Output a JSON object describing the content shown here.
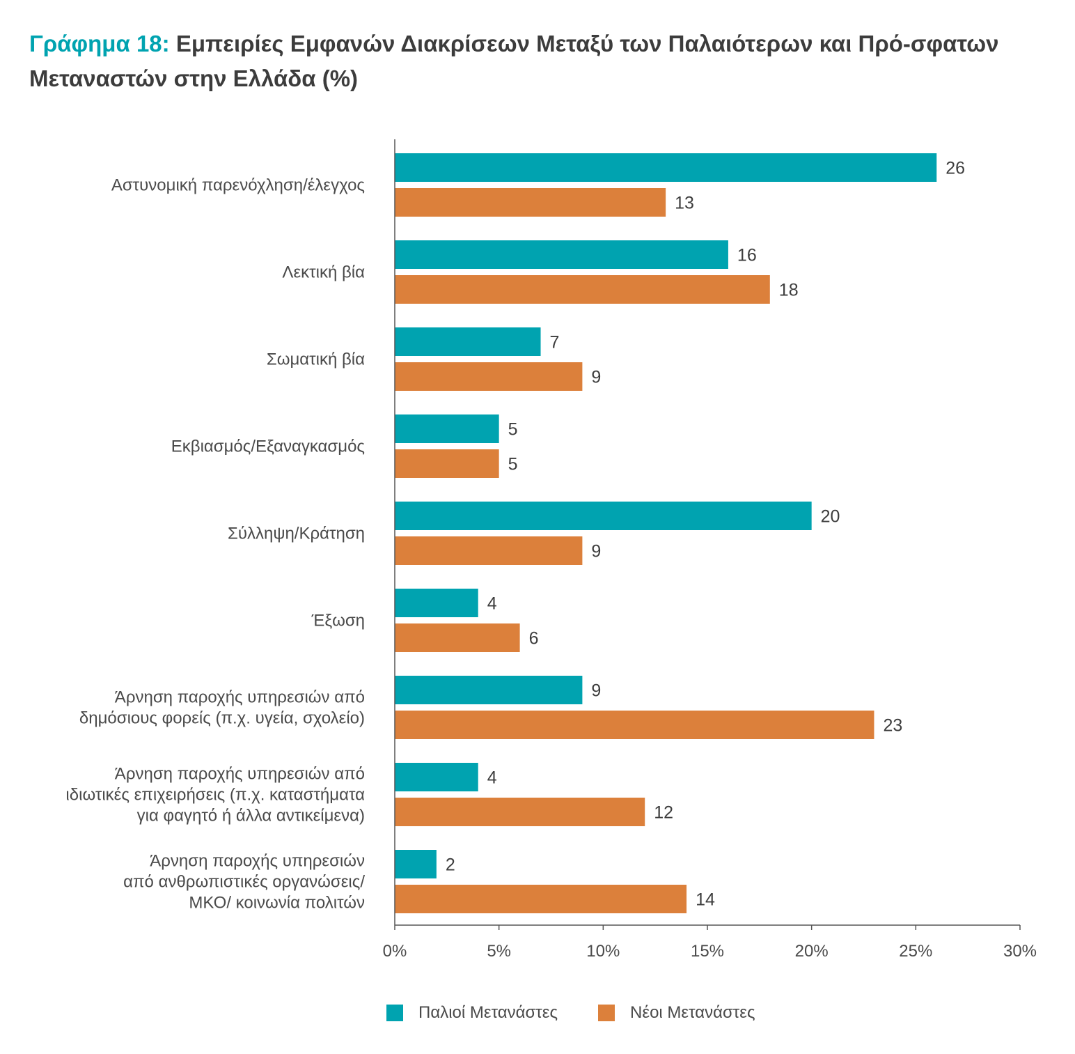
{
  "title": {
    "prefix": "Γράφημα 18:",
    "text": "Εμπειρίες Εμφανών Διακρίσεων Μεταξύ των Παλαιότερων και Πρό-σφατων Μεταναστών στην Ελλάδα (%)"
  },
  "colors": {
    "old": "#00a3b0",
    "new": "#dc803b",
    "axis": "#555555"
  },
  "chart_data": {
    "type": "bar",
    "orientation": "horizontal",
    "categories": [
      [
        "Αστυνομική παρενόχληση/έλεγχος"
      ],
      [
        "Λεκτική βία"
      ],
      [
        "Σωματική βία"
      ],
      [
        "Εκβιασμός/Εξαναγκασμός"
      ],
      [
        "Σύλληψη/Κράτηση"
      ],
      [
        "Έξωση"
      ],
      [
        "Άρνηση παροχής υπηρεσιών από",
        "δημόσιους φορείς (π.χ. υγεία, σχολείο)"
      ],
      [
        "Άρνηση παροχής υπηρεσιών από",
        "ιδιωτικές επιχειρήσεις (π.χ. καταστήματα",
        "για φαγητό ή άλλα αντικείμενα)"
      ],
      [
        "Άρνηση παροχής υπηρεσιών",
        "από ανθρωπιστικές οργανώσεις/",
        "ΜΚΟ/ κοινωνία πολιτών"
      ]
    ],
    "series": [
      {
        "name": "Παλιοί Μετανάστες",
        "values": [
          26,
          16,
          7,
          5,
          20,
          4,
          9,
          4,
          2
        ]
      },
      {
        "name": "Νέοι Μετανάστες",
        "values": [
          13,
          18,
          9,
          5,
          9,
          6,
          23,
          12,
          14
        ]
      }
    ],
    "xlim": [
      0,
      30
    ],
    "ticks": [
      "0%",
      "5%",
      "10%",
      "15%",
      "20%",
      "25%",
      "30%"
    ],
    "legend_position": "bottom",
    "grid": false
  }
}
